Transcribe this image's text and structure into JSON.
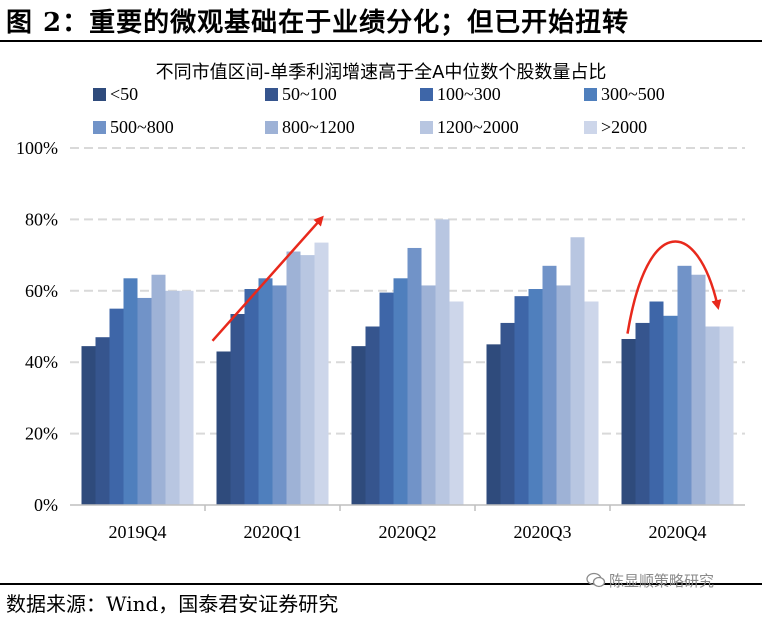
{
  "figure": {
    "title": "图 2：重要的微观基础在于业绩分化；但已开始扭转",
    "source": "数据来源：Wind，国泰君安证券研究",
    "watermark": "陈显顺策略研究"
  },
  "colors": {
    "series": [
      "#2f4b7c",
      "#36558e",
      "#3e66a8",
      "#4f7fbd",
      "#7193c8",
      "#9eb2d6",
      "#b8c6e1",
      "#cdd6ea"
    ],
    "grid": "#d9d9d9",
    "annotation": "#e8291c"
  },
  "chart_data": {
    "type": "bar",
    "title": "不同市值区间-单季利润增速高于全A中位数个股数量占比",
    "categories": [
      "2019Q4",
      "2020Q1",
      "2020Q2",
      "2020Q3",
      "2020Q4"
    ],
    "series": [
      {
        "name": "<50",
        "values": [
          44.5,
          43.0,
          44.5,
          45.0,
          46.5
        ]
      },
      {
        "name": "50~100",
        "values": [
          47.0,
          53.5,
          50.0,
          51.0,
          51.0
        ]
      },
      {
        "name": "100~300",
        "values": [
          55.0,
          60.5,
          59.5,
          58.5,
          57.0
        ]
      },
      {
        "name": "300~500",
        "values": [
          63.5,
          63.5,
          63.5,
          60.5,
          53.0
        ]
      },
      {
        "name": "500~800",
        "values": [
          58.0,
          61.5,
          72.0,
          67.0,
          67.0
        ]
      },
      {
        "name": "800~1200",
        "values": [
          64.5,
          71.0,
          61.5,
          61.5,
          64.5
        ]
      },
      {
        "name": "1200~2000",
        "values": [
          60.0,
          70.0,
          80.0,
          75.0,
          50.0
        ]
      },
      {
        "name": ">2000",
        "values": [
          60.0,
          73.5,
          57.0,
          57.0,
          50.0
        ]
      }
    ],
    "ylim": [
      0,
      100
    ],
    "yticks": [
      "0%",
      "20%",
      "40%",
      "60%",
      "80%",
      "100%"
    ],
    "grid": true,
    "legend_position": "top",
    "annotations": [
      "rising arrow over 2020Q1",
      "curved falling arrow over 2020Q4"
    ]
  }
}
